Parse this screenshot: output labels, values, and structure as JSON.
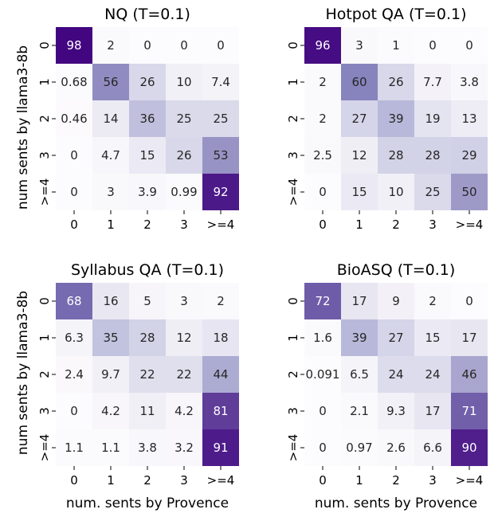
{
  "figure": {
    "shared_ylabel": "num sents by llama3-8b",
    "shared_xlabel": "num. sents by Provence"
  },
  "chart_data": [
    {
      "type": "heatmap",
      "title": "NQ (T=0.1)",
      "x_categories": [
        "0",
        "1",
        "2",
        "3",
        ">=4"
      ],
      "y_categories": [
        "0",
        "1",
        "2",
        "3",
        ">=4"
      ],
      "values": [
        [
          98,
          2,
          0,
          0,
          0
        ],
        [
          0.68,
          56,
          26,
          10,
          7.4
        ],
        [
          0.46,
          14,
          36,
          25,
          25
        ],
        [
          0,
          4.7,
          15,
          26,
          53
        ],
        [
          0,
          3,
          3.9,
          0.99,
          92
        ]
      ],
      "labels": [
        [
          "98",
          "2",
          "0",
          "0",
          "0"
        ],
        [
          "0.68",
          "56",
          "26",
          "10",
          "7.4"
        ],
        [
          "0.46",
          "14",
          "36",
          "25",
          "25"
        ],
        [
          "0",
          "4.7",
          "15",
          "26",
          "53"
        ],
        [
          "0",
          "3",
          "3.9",
          "0.99",
          "92"
        ]
      ],
      "color_range": [
        0,
        100
      ],
      "colormap": "Purples"
    },
    {
      "type": "heatmap",
      "title": "Hotpot QA (T=0.1)",
      "x_categories": [
        "0",
        "1",
        "2",
        "3",
        ">=4"
      ],
      "y_categories": [
        "0",
        "1",
        "2",
        "3",
        ">=4"
      ],
      "values": [
        [
          96,
          3,
          1,
          0,
          0
        ],
        [
          2,
          60,
          26,
          7.7,
          3.8
        ],
        [
          2,
          27,
          39,
          19,
          13
        ],
        [
          2.5,
          12,
          28,
          28,
          29
        ],
        [
          0,
          15,
          10,
          25,
          50
        ]
      ],
      "labels": [
        [
          "96",
          "3",
          "1",
          "0",
          "0"
        ],
        [
          "2",
          "60",
          "26",
          "7.7",
          "3.8"
        ],
        [
          "2",
          "27",
          "39",
          "19",
          "13"
        ],
        [
          "2.5",
          "12",
          "28",
          "28",
          "29"
        ],
        [
          "0",
          "15",
          "10",
          "25",
          "50"
        ]
      ],
      "color_range": [
        0,
        100
      ],
      "colormap": "Purples"
    },
    {
      "type": "heatmap",
      "title": "Syllabus QA (T=0.1)",
      "x_categories": [
        "0",
        "1",
        "2",
        "3",
        ">=4"
      ],
      "y_categories": [
        "0",
        "1",
        "2",
        "3",
        ">=4"
      ],
      "values": [
        [
          68,
          16,
          5,
          3,
          2
        ],
        [
          6.3,
          35,
          28,
          12,
          18
        ],
        [
          2.4,
          9.7,
          22,
          22,
          44
        ],
        [
          0,
          4.2,
          11,
          4.2,
          81
        ],
        [
          1.1,
          1.1,
          3.8,
          3.2,
          91
        ]
      ],
      "labels": [
        [
          "68",
          "16",
          "5",
          "3",
          "2"
        ],
        [
          "6.3",
          "35",
          "28",
          "12",
          "18"
        ],
        [
          "2.4",
          "9.7",
          "22",
          "22",
          "44"
        ],
        [
          "0",
          "4.2",
          "11",
          "4.2",
          "81"
        ],
        [
          "1.1",
          "1.1",
          "3.8",
          "3.2",
          "91"
        ]
      ],
      "color_range": [
        0,
        100
      ],
      "colormap": "Purples"
    },
    {
      "type": "heatmap",
      "title": "BioASQ (T=0.1)",
      "x_categories": [
        "0",
        "1",
        "2",
        "3",
        ">=4"
      ],
      "y_categories": [
        "0",
        "1",
        "2",
        "3",
        ">=4"
      ],
      "values": [
        [
          72,
          17,
          9,
          2,
          0
        ],
        [
          1.6,
          39,
          27,
          15,
          17
        ],
        [
          0.091,
          6.5,
          24,
          24,
          46
        ],
        [
          0,
          2.1,
          9.3,
          17,
          71
        ],
        [
          0,
          0.97,
          2.6,
          6.6,
          90
        ]
      ],
      "labels": [
        [
          "72",
          "17",
          "9",
          "2",
          "0"
        ],
        [
          "1.6",
          "39",
          "27",
          "15",
          "17"
        ],
        [
          "0.091",
          "6.5",
          "24",
          "24",
          "46"
        ],
        [
          "0",
          "2.1",
          "9.3",
          "17",
          "71"
        ],
        [
          "0",
          "0.97",
          "2.6",
          "6.6",
          "90"
        ]
      ],
      "color_range": [
        0,
        100
      ],
      "colormap": "Purples"
    }
  ]
}
